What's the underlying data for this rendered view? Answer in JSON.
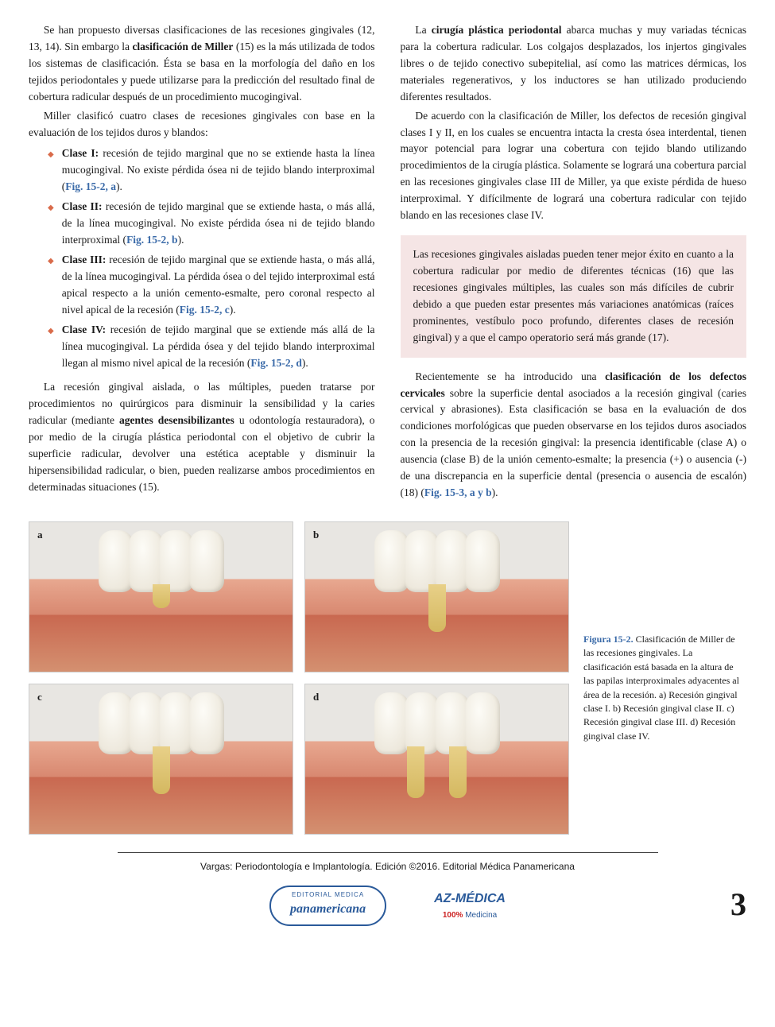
{
  "colors": {
    "link": "#3a6aa8",
    "bullet": "#d96b4a",
    "callout_bg": "#f5e5e5",
    "text": "#1a1a1a"
  },
  "left": {
    "p1a": "Se han propuesto diversas clasificaciones de las recesiones gingivales (12, 13, 14). Sin embargo la ",
    "p1b": "clasificación de Miller",
    "p1c": " (15) es la más utilizada de todos los sistemas de clasificación. Ésta se basa en la morfología del daño en los tejidos periodontales y puede utilizarse para la predicción del resultado final de cobertura radicular después de un procedimiento mucogingival.",
    "p2": "Miller clasificó cuatro clases de recesiones gingivales con base en la evaluación de los tejidos duros y blandos:",
    "b1h": "Clase I:",
    "b1t": " recesión de tejido marginal que no se extiende hasta la línea mucogingival. No existe pérdida ósea ni de tejido blando interproximal (",
    "b1f": "Fig. 15-2, a",
    "b1e": ").",
    "b2h": "Clase II:",
    "b2t": " recesión de tejido marginal que se extiende hasta, o más allá, de la línea mucogingival. No existe pérdida ósea ni de tejido blando interproximal (",
    "b2f": "Fig. 15-2, b",
    "b2e": ").",
    "b3h": "Clase III:",
    "b3t": " recesión de tejido marginal que se extiende hasta, o más allá, de la línea mucogingival. La pérdida ósea o del tejido interproximal está apical respecto a la unión cemento-esmalte, pero coronal respecto al nivel apical de la recesión (",
    "b3f": "Fig. 15-2, c",
    "b3e": ").",
    "b4h": "Clase IV:",
    "b4t": " recesión de tejido marginal que se extiende más allá de la línea mucogingival. La pérdida ósea y del tejido blando interproximal llegan al mismo nivel apical de la recesión (",
    "b4f": "Fig. 15-2, d",
    "b4e": ").",
    "p3a": "La recesión gingival aislada, o las múltiples, pueden tratarse por procedimientos no quirúrgicos para disminuir la sensibilidad y la caries radicular (mediante ",
    "p3b": "agentes desensibilizantes",
    "p3c": " u odontología restauradora), o por medio de la cirugía plástica periodontal con el objetivo de cubrir la superficie radicular, devolver una estética aceptable y disminuir la hipersensibilidad radicular, o bien, pueden realizarse ambos procedimientos en determinadas situaciones (15)."
  },
  "right": {
    "p1a": "La ",
    "p1b": "cirugía plástica periodontal",
    "p1c": " abarca muchas y muy variadas técnicas para la cobertura radicular. Los colgajos desplazados, los injertos gingivales libres o de tejido conectivo subepitelial, así como las matrices dérmicas, los materiales regenerativos, y los inductores se han utilizado produciendo diferentes resultados.",
    "p2": "De acuerdo con la clasificación de Miller, los defectos de recesión gingival clases I y II, en los cuales se encuentra intacta la cresta ósea interdental, tienen mayor potencial para lograr una cobertura con tejido blando utilizando procedimientos de la cirugía plástica. Solamente se logrará una cobertura parcial en las recesiones gingivales clase III de Miller, ya que existe pérdida de hueso interproximal. Y difícilmente de logrará una cobertura radicular con tejido blando en las recesiones clase IV.",
    "callout": "Las recesiones gingivales aisladas pueden tener mejor éxito en cuanto a la cobertura radicular por medio de diferentes técnicas (16) que las recesiones gingivales múltiples, las cuales son más difíciles de cubrir debido a que pueden estar presentes más variaciones anatómicas (raíces prominentes, vestíbulo poco profundo, diferentes clases de recesión gingival) y a que el campo operatorio será más grande (17).",
    "p3a": "Recientemente se ha introducido una ",
    "p3b": "clasificación de los defectos cervicales",
    "p3c": " sobre la superficie dental asociados a la recesión gingival (caries cervical y abrasiones). Esta clasificación se basa en la evaluación de dos condiciones morfológicas que pueden observarse en los tejidos duros asociados con la presencia de la recesión gingival: la presencia identificable (clase A) o ausencia (clase B) de la unión cemento-esmalte; la presencia (+) o ausencia (-) de una discrepancia en la superficie dental (presencia o ausencia de escalón) (18) (",
    "p3f": "Fig. 15-3, a y b",
    "p3e": ")."
  },
  "fig": {
    "labels": [
      "a",
      "b",
      "c",
      "d"
    ],
    "num": "Figura 15-2.",
    "caption": " Clasificación de Miller de las recesiones gingivales. La clasificación está basada en la altura de las papilas interproximales adyacentes al área de la recesión. a) Recesión gingival clase I. b) Recesión gingival clase II. c) Recesión gingival clase III. d) Recesión gingival clase IV."
  },
  "footer": {
    "citation": "Vargas: Periodontología e Implantología. Edición ©2016. Editorial Médica Panamericana",
    "logo_pan_top": "EDITORIAL MEDICA",
    "logo_pan_bot": "panamericana",
    "logo_az_top": "AZ-MÉDICA",
    "logo_az_p1": "100%",
    "logo_az_p2": " Medicina",
    "page": "3"
  }
}
